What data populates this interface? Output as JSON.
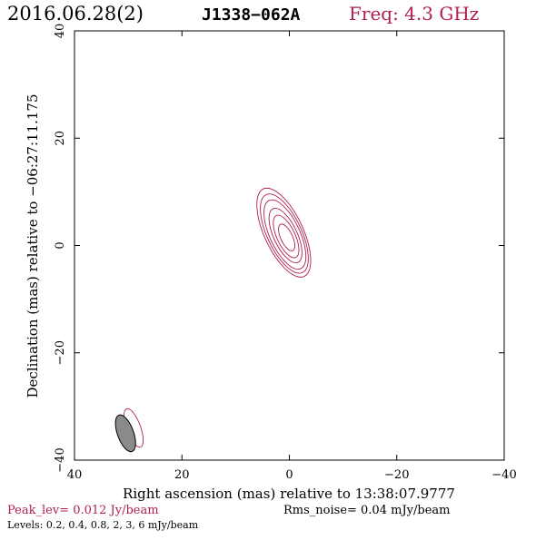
{
  "header": {
    "date": "2016.06.28(2)",
    "source": "J1338−062A",
    "freq": "Freq: 4.3 GHz"
  },
  "footer": {
    "peak": "Peak_lev=  0.012 Jy/beam",
    "rms": "Rms_noise= 0.04 mJy/beam",
    "levels": "Levels: 0.2, 0.4, 0.8,   2,   3,   6 mJy/beam"
  },
  "chart_data": {
    "type": "contour",
    "xlabel": "Right ascension (mas) relative to 13:38:07.9777",
    "ylabel": "Declination (mas) relative to −06:27:11.175",
    "xlim": [
      40,
      -40
    ],
    "ylim": [
      -40,
      40
    ],
    "x_ticks": [
      {
        "value": 40,
        "label": "40"
      },
      {
        "value": 20,
        "label": "20"
      },
      {
        "value": 0,
        "label": "0"
      },
      {
        "value": -20,
        "label": "−20"
      },
      {
        "value": -40,
        "label": "−40"
      }
    ],
    "y_ticks": [
      {
        "value": -40,
        "label": "−40"
      },
      {
        "value": -20,
        "label": "−20"
      },
      {
        "value": 0,
        "label": "0"
      },
      {
        "value": 20,
        "label": "20"
      },
      {
        "value": 40,
        "label": "40"
      }
    ],
    "contour_levels_mJy": [
      0.2,
      0.4,
      0.8,
      2,
      3,
      6
    ],
    "peak_Jy_per_beam": 0.012,
    "rms_noise_mJy_per_beam": 0.04,
    "source_center": {
      "ra": 0.5,
      "dec": 1.5
    },
    "contours": [
      {
        "level": 0.2,
        "major": 9.0,
        "minor": 3.6,
        "pa_deg": 25
      },
      {
        "level": 0.4,
        "major": 8.0,
        "minor": 3.2,
        "pa_deg": 25
      },
      {
        "level": 0.8,
        "major": 7.0,
        "minor": 2.8,
        "pa_deg": 25
      },
      {
        "level": 2,
        "major": 5.5,
        "minor": 2.2,
        "pa_deg": 25
      },
      {
        "level": 3,
        "major": 4.3,
        "minor": 1.7,
        "pa_deg": 25
      },
      {
        "level": 6,
        "major": 2.7,
        "minor": 1.1,
        "pa_deg": 25
      }
    ],
    "beam": {
      "ra": 30.5,
      "dec": -35.0,
      "major": 3.6,
      "minor": 1.5,
      "pa_deg": 20
    },
    "beam_contour": {
      "ra": 29.0,
      "dec": -34.0,
      "major": 3.8,
      "minor": 1.3,
      "pa_deg": 20
    },
    "colors": {
      "contour": "#b0204a",
      "beam_fill": "#8a8a8a"
    }
  }
}
